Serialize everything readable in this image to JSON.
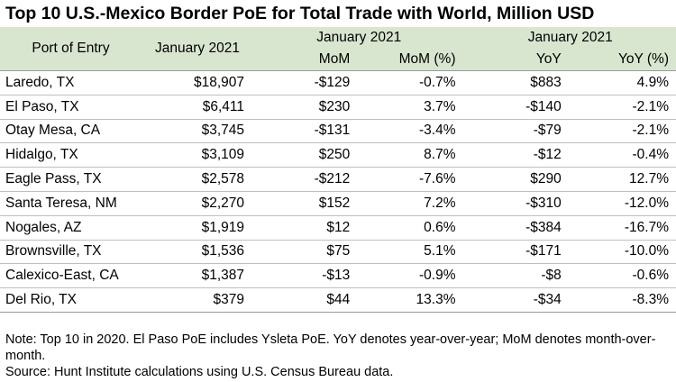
{
  "title": "Top 10 U.S.-Mexico Border PoE for Total Trade with World, Million USD",
  "headers": {
    "port": "Port of Entry",
    "value": "January 2021",
    "mom_group": "January 2021",
    "yoy_group": "January 2021",
    "mom": "MoM",
    "mom_pct": "MoM (%)",
    "yoy": "YoY",
    "yoy_pct": "YoY (%)"
  },
  "rows": [
    {
      "port": "Laredo, TX",
      "value": "$18,907",
      "mom": "-$129",
      "mom_pct": "-0.7%",
      "yoy": "$883",
      "yoy_pct": "4.9%"
    },
    {
      "port": "El Paso, TX",
      "value": "$6,411",
      "mom": "$230",
      "mom_pct": "3.7%",
      "yoy": "-$140",
      "yoy_pct": "-2.1%"
    },
    {
      "port": "Otay Mesa, CA",
      "value": "$3,745",
      "mom": "-$131",
      "mom_pct": "-3.4%",
      "yoy": "-$79",
      "yoy_pct": "-2.1%"
    },
    {
      "port": "Hidalgo, TX",
      "value": "$3,109",
      "mom": "$250",
      "mom_pct": "8.7%",
      "yoy": "-$12",
      "yoy_pct": "-0.4%"
    },
    {
      "port": "Eagle Pass, TX",
      "value": "$2,578",
      "mom": "-$212",
      "mom_pct": "-7.6%",
      "yoy": "$290",
      "yoy_pct": "12.7%"
    },
    {
      "port": "Santa Teresa, NM",
      "value": "$2,270",
      "mom": "$152",
      "mom_pct": "7.2%",
      "yoy": "-$310",
      "yoy_pct": "-12.0%"
    },
    {
      "port": "Nogales, AZ",
      "value": "$1,919",
      "mom": "$12",
      "mom_pct": "0.6%",
      "yoy": "-$384",
      "yoy_pct": "-16.7%"
    },
    {
      "port": "Brownsville, TX",
      "value": "$1,536",
      "mom": "$75",
      "mom_pct": "5.1%",
      "yoy": "-$171",
      "yoy_pct": "-10.0%"
    },
    {
      "port": "Calexico-East, CA",
      "value": "$1,387",
      "mom": "-$13",
      "mom_pct": "-0.9%",
      "yoy": "-$8",
      "yoy_pct": "-0.6%"
    },
    {
      "port": "Del Rio, TX",
      "value": "$379",
      "mom": "$44",
      "mom_pct": "13.3%",
      "yoy": "-$34",
      "yoy_pct": "-8.3%"
    }
  ],
  "notes": {
    "note": "Note: Top 10 in 2020. El Paso PoE includes Ysleta PoE. YoY denotes year-over-year; MoM denotes month-over-month.",
    "source": "Source: Hunt Institute calculations using U.S. Census Bureau data."
  },
  "colors": {
    "header_bg": "#d9e6cf",
    "row_rule": "#bfbfbf"
  }
}
